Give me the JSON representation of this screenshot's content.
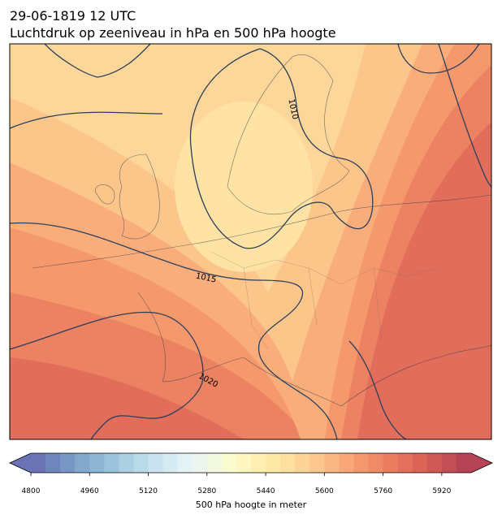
{
  "title": "29-06-1819 12 UTC",
  "subtitle": "Luchtdruk op zeeniveau in hPa en 500 hPa hoogte",
  "contour_labels": [
    "1010",
    "1015",
    "1020"
  ],
  "colorbar": {
    "label": "500 hPa hoogte in meter",
    "range": [
      4800,
      6000
    ],
    "ticks": [
      4800,
      4960,
      5120,
      5280,
      5440,
      5600,
      5760,
      5920
    ],
    "colors": [
      "#6b73b5",
      "#6e85bd",
      "#7896c4",
      "#84a7cc",
      "#8fb5d4",
      "#9cc3dc",
      "#abcfe3",
      "#b9dae9",
      "#c8e3ef",
      "#d6ecf3",
      "#e2f2f5",
      "#ecf6ef",
      "#f4f9e1",
      "#fbfbd0",
      "#fff6bf",
      "#fff0b2",
      "#feeaa6",
      "#fde0a0",
      "#fdd498",
      "#fcc68d",
      "#fbb781",
      "#f9a777",
      "#f6986e",
      "#f18a66",
      "#eb7d60",
      "#e4705b",
      "#db6457",
      "#d05955",
      "#c44e55",
      "#b74456"
    ]
  }
}
